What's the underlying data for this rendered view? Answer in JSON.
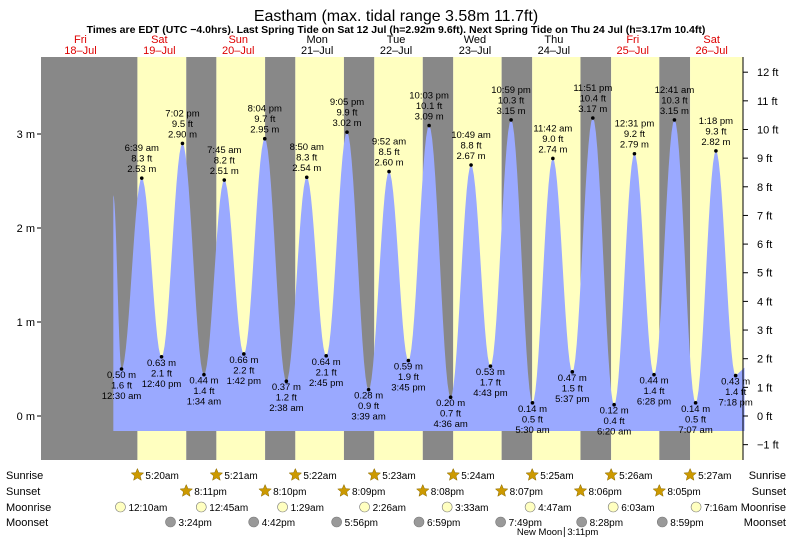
{
  "chart_data": {
    "type": "area",
    "title": "Eastham (max. tidal range 3.58m 11.7ft)",
    "subtitle": "Times are EDT (UTC −4.0hrs). Last Spring Tide on Sat 12 Jul (h=2.92m 9.6ft). Next Spring Tide on Thu 24 Jul (h=3.17m 10.4ft)",
    "days": [
      {
        "dow": "Fri",
        "date": "18–Jul",
        "weekend": true
      },
      {
        "dow": "Sat",
        "date": "19–Jul",
        "weekend": true
      },
      {
        "dow": "Sun",
        "date": "20–Jul",
        "weekend": true
      },
      {
        "dow": "Mon",
        "date": "21–Jul",
        "weekend": false
      },
      {
        "dow": "Tue",
        "date": "22–Jul",
        "weekend": false
      },
      {
        "dow": "Wed",
        "date": "23–Jul",
        "weekend": false
      },
      {
        "dow": "Thu",
        "date": "24–Jul",
        "weekend": false
      },
      {
        "dow": "Fri",
        "date": "25–Jul",
        "weekend": true
      },
      {
        "dow": "Sat",
        "date": "26–Jul",
        "weekend": true
      }
    ],
    "y_left": {
      "unit": "m",
      "ticks": [
        "0 m",
        "1 m",
        "2 m",
        "3 m"
      ],
      "values": [
        0,
        1,
        2,
        3
      ],
      "range": [
        -0.55,
        3.85
      ]
    },
    "y_right": {
      "ticks": [
        "−1 ft",
        "0 ft",
        "1 ft",
        "2 ft",
        "3 ft",
        "4 ft",
        "5 ft",
        "6 ft",
        "7 ft",
        "8 ft",
        "9 ft",
        "10 ft",
        "11 ft",
        "12 ft"
      ],
      "values": [
        -1,
        0,
        1,
        2,
        3,
        4,
        5,
        6,
        7,
        8,
        9,
        10,
        11,
        12
      ]
    },
    "tides": [
      {
        "day": 1,
        "time": "12:30 am",
        "m": 0.5,
        "ft": "1.6 ft",
        "type": "low"
      },
      {
        "day": 1,
        "time": "6:39 am",
        "m": 2.53,
        "ft": "8.3 ft",
        "type": "high"
      },
      {
        "day": 1,
        "time": "12:40 pm",
        "m": 0.63,
        "ft": "2.1 ft",
        "type": "low"
      },
      {
        "day": 1,
        "time": "7:02 pm",
        "m": 2.9,
        "ft": "9.5 ft",
        "type": "high"
      },
      {
        "day": 2,
        "time": "1:34 am",
        "m": 0.44,
        "ft": "1.4 ft",
        "type": "low"
      },
      {
        "day": 2,
        "time": "7:45 am",
        "m": 2.51,
        "ft": "8.2 ft",
        "type": "high"
      },
      {
        "day": 2,
        "time": "1:42 pm",
        "m": 0.66,
        "ft": "2.2 ft",
        "type": "low"
      },
      {
        "day": 2,
        "time": "8:04 pm",
        "m": 2.95,
        "ft": "9.7 ft",
        "type": "high"
      },
      {
        "day": 3,
        "time": "2:38 am",
        "m": 0.37,
        "ft": "1.2 ft",
        "type": "low"
      },
      {
        "day": 3,
        "time": "8:50 am",
        "m": 2.54,
        "ft": "8.3 ft",
        "type": "high"
      },
      {
        "day": 3,
        "time": "2:45 pm",
        "m": 0.64,
        "ft": "2.1 ft",
        "type": "low"
      },
      {
        "day": 3,
        "time": "9:05 pm",
        "m": 3.02,
        "ft": "9.9 ft",
        "type": "high"
      },
      {
        "day": 4,
        "time": "3:39 am",
        "m": 0.28,
        "ft": "0.9 ft",
        "type": "low"
      },
      {
        "day": 4,
        "time": "9:52 am",
        "m": 2.6,
        "ft": "8.5 ft",
        "type": "high"
      },
      {
        "day": 4,
        "time": "3:45 pm",
        "m": 0.59,
        "ft": "1.9 ft",
        "type": "low"
      },
      {
        "day": 4,
        "time": "10:03 pm",
        "m": 3.09,
        "ft": "10.1 ft",
        "type": "high"
      },
      {
        "day": 5,
        "time": "4:36 am",
        "m": 0.2,
        "ft": "0.7 ft",
        "type": "low"
      },
      {
        "day": 5,
        "time": "10:49 am",
        "m": 2.67,
        "ft": "8.8 ft",
        "type": "high"
      },
      {
        "day": 5,
        "time": "4:43 pm",
        "m": 0.53,
        "ft": "1.7 ft",
        "type": "low"
      },
      {
        "day": 5,
        "time": "10:59 pm",
        "m": 3.15,
        "ft": "10.3 ft",
        "type": "high"
      },
      {
        "day": 6,
        "time": "5:30 am",
        "m": 0.14,
        "ft": "0.5 ft",
        "type": "low"
      },
      {
        "day": 6,
        "time": "11:42 am",
        "m": 2.74,
        "ft": "9.0 ft",
        "type": "high"
      },
      {
        "day": 6,
        "time": "5:37 pm",
        "m": 0.47,
        "ft": "1.5 ft",
        "type": "low"
      },
      {
        "day": 6,
        "time": "11:51 pm",
        "m": 3.17,
        "ft": "10.4 ft",
        "type": "high"
      },
      {
        "day": 7,
        "time": "6:20 am",
        "m": 0.12,
        "ft": "0.4 ft",
        "type": "low"
      },
      {
        "day": 7,
        "time": "12:31 pm",
        "m": 2.79,
        "ft": "9.2 ft",
        "type": "high"
      },
      {
        "day": 7,
        "time": "6:28 pm",
        "m": 0.44,
        "ft": "1.4 ft",
        "type": "low"
      },
      {
        "day": 8,
        "time": "12:41 am",
        "m": 3.15,
        "ft": "10.3 ft",
        "type": "high"
      },
      {
        "day": 8,
        "time": "7:07 am",
        "m": 0.14,
        "ft": "0.5 ft",
        "type": "low"
      },
      {
        "day": 8,
        "time": "1:18 pm",
        "m": 2.82,
        "ft": "9.3 ft",
        "type": "high"
      },
      {
        "day": 8,
        "time": "7:18 pm",
        "m": 0.43,
        "ft": "1.4 ft",
        "type": "low"
      }
    ],
    "curve_start": {
      "day": 0,
      "time": "10:00 pm",
      "m": 2.35
    },
    "curve_end": {
      "day": 8,
      "time": "10:00 pm"
    },
    "sun": [
      {
        "day": 1,
        "sunrise": "5:20am",
        "sunset": "8:11pm"
      },
      {
        "day": 2,
        "sunrise": "5:21am",
        "sunset": "8:10pm"
      },
      {
        "day": 3,
        "sunrise": "5:22am",
        "sunset": "8:09pm"
      },
      {
        "day": 4,
        "sunrise": "5:23am",
        "sunset": "8:08pm"
      },
      {
        "day": 5,
        "sunrise": "5:24am",
        "sunset": "8:07pm"
      },
      {
        "day": 6,
        "sunrise": "5:25am",
        "sunset": "8:06pm"
      },
      {
        "day": 7,
        "sunrise": "5:26am",
        "sunset": "8:05pm"
      },
      {
        "day": 8,
        "sunrise": "5:27am",
        "sunset": null
      }
    ],
    "moon": [
      {
        "day": 1,
        "moonrise": "12:10am",
        "moonset": "3:24pm"
      },
      {
        "day": 2,
        "moonrise": "12:45am",
        "moonset": "4:42pm"
      },
      {
        "day": 3,
        "moonrise": "1:29am",
        "moonset": "5:56pm"
      },
      {
        "day": 4,
        "moonrise": "2:26am",
        "moonset": "6:59pm"
      },
      {
        "day": 5,
        "moonrise": "3:33am",
        "moonset": "7:49pm"
      },
      {
        "day": 6,
        "moonrise": "4:47am",
        "moonset": "8:28pm"
      },
      {
        "day": 7,
        "moonrise": "6:03am",
        "moonset": "8:59pm"
      },
      {
        "day": 8,
        "moonrise": "7:16am",
        "moonset": null
      }
    ],
    "row_labels": [
      "Sunrise",
      "Sunset",
      "Moonrise",
      "Moonset"
    ],
    "moon_phase": {
      "label": "New Moon",
      "time": "3:11pm",
      "day": 6
    },
    "colors": {
      "night": "#888888",
      "day": "#ffffc0",
      "water": "#9aa9ff",
      "title": "#000000",
      "weekend_label": "#dd0000",
      "weekday_label": "#000000",
      "sun_star": "#cc9900",
      "moon_light": "#ffffc0",
      "moon_dark": "#999999"
    }
  }
}
